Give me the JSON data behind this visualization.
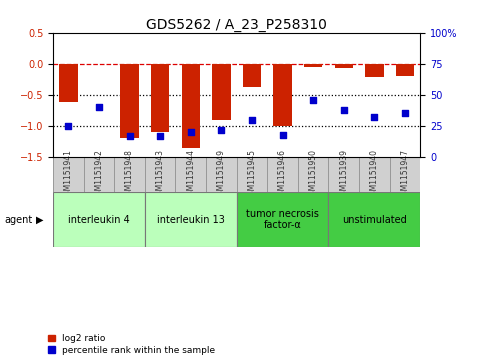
{
  "title": "GDS5262 / A_23_P258310",
  "samples": [
    "GSM1151941",
    "GSM1151942",
    "GSM1151948",
    "GSM1151943",
    "GSM1151944",
    "GSM1151949",
    "GSM1151945",
    "GSM1151946",
    "GSM1151950",
    "GSM1151939",
    "GSM1151940",
    "GSM1151947"
  ],
  "log2_ratio": [
    -0.62,
    0.0,
    -1.2,
    -1.1,
    -1.35,
    -0.9,
    -0.37,
    -1.0,
    -0.05,
    -0.07,
    -0.22,
    -0.2
  ],
  "percentile_rank": [
    25,
    40,
    17,
    17,
    20,
    22,
    30,
    18,
    46,
    38,
    32,
    35
  ],
  "ylim_left": [
    -1.5,
    0.5
  ],
  "ylim_right": [
    0,
    100
  ],
  "yticks_left": [
    -1.5,
    -1.0,
    -0.5,
    0.0,
    0.5
  ],
  "yticks_right": [
    0,
    25,
    50,
    75,
    100
  ],
  "hlines": [
    0.0,
    -0.5,
    -1.0
  ],
  "hline_styles": [
    "dashed",
    "dotted",
    "dotted"
  ],
  "hline_colors": [
    "#dd0000",
    "black",
    "black"
  ],
  "agents": [
    {
      "label": "interleukin 4",
      "start": 0,
      "end": 2,
      "color": "#bbffbb"
    },
    {
      "label": "interleukin 13",
      "start": 3,
      "end": 5,
      "color": "#bbffbb"
    },
    {
      "label": "tumor necrosis\nfactor-α",
      "start": 6,
      "end": 8,
      "color": "#44cc44"
    },
    {
      "label": "unstimulated",
      "start": 9,
      "end": 11,
      "color": "#44cc44"
    }
  ],
  "bar_color": "#cc2200",
  "dot_color": "#0000cc",
  "bar_width": 0.6,
  "legend_items": [
    {
      "label": "log2 ratio",
      "color": "#cc2200"
    },
    {
      "label": "percentile rank within the sample",
      "color": "#0000cc"
    }
  ],
  "agent_label": "agent",
  "title_fontsize": 10,
  "tick_fontsize": 7,
  "sample_fontsize": 5.5,
  "agent_fontsize": 7,
  "legend_fontsize": 6.5
}
